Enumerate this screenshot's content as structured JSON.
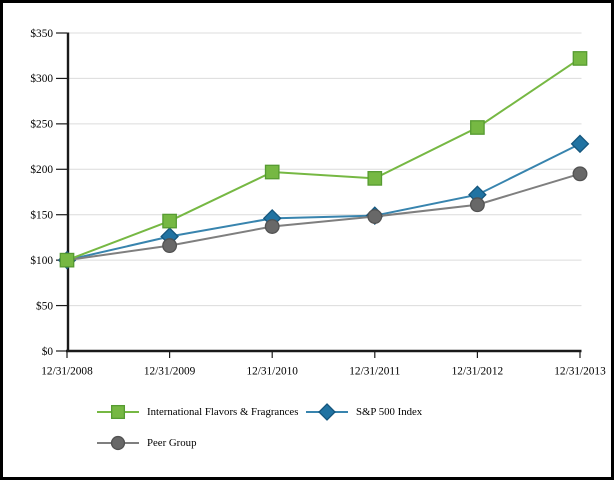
{
  "chart_data": {
    "type": "line",
    "title": "",
    "x": [
      "12/31/2008",
      "12/31/2009",
      "12/31/2010",
      "12/31/2011",
      "12/31/2012",
      "12/31/2013"
    ],
    "y_ticks": [
      "$0",
      "$50",
      "$100",
      "$150",
      "$200",
      "$250",
      "$300",
      "$350"
    ],
    "ylim": [
      0,
      350
    ],
    "grid": true,
    "legend_position": "bottom",
    "gridline_color": "#dcdcdc",
    "axis_color": "#1a1a1a",
    "series": [
      {
        "name": "International Flavors & Fragrances",
        "marker": "square",
        "fill": "#76b843",
        "stroke": "#569b31",
        "line": "#76b843",
        "values": [
          100,
          143,
          197,
          190,
          246,
          322
        ]
      },
      {
        "name": "S&P 500 Index",
        "marker": "diamond",
        "fill": "#2173a2",
        "stroke": "#15567d",
        "line": "#3884ae",
        "values": [
          100,
          126,
          146,
          149,
          172,
          228
        ]
      },
      {
        "name": "Peer Group",
        "marker": "circle",
        "fill": "#686868",
        "stroke": "#525252",
        "line": "#7f7f7f",
        "values": [
          100,
          116,
          137,
          148,
          161,
          195
        ]
      }
    ],
    "draw_order": [
      1,
      2,
      0
    ]
  }
}
